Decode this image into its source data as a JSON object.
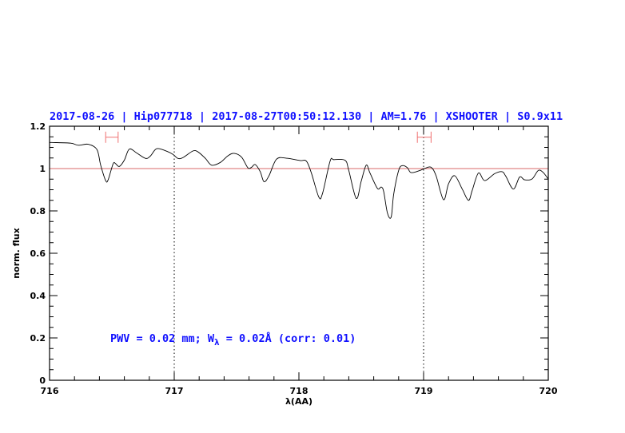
{
  "chart_data": {
    "type": "line",
    "title": "2017-08-26 | Hip077718 | 2017-08-27T00:50:12.130 | AM=1.76 | XSHOOTER | S0.9x11",
    "xlabel": "λ(AA)",
    "ylabel": "norm. flux",
    "xlim": [
      716,
      720
    ],
    "ylim": [
      0,
      1.2
    ],
    "x_ticks": [
      "716",
      "717",
      "718",
      "719",
      "720"
    ],
    "y_ticks": [
      "0",
      "0.2",
      "0.4",
      "0.6",
      "0.8",
      "1",
      "1.2"
    ],
    "grid": false,
    "reference_line_y": 1,
    "reference_line_color": "#d86a6a",
    "dotted_vertical_lines_x": [
      717,
      719
    ],
    "annotation": {
      "prefix": "PWV = 0.02 mm; W",
      "subscript": "λ",
      "suffix": " = 0.02Å (corr: 0.01)"
    },
    "error_bars": [
      {
        "x_from": 716.45,
        "x_to": 716.55,
        "y": 1.148
      },
      {
        "x_from": 718.95,
        "x_to": 719.06,
        "y": 1.148
      }
    ],
    "error_bar_color": "#f07070",
    "title_color": "#1010ff",
    "series": [
      {
        "color": "#000000",
        "x": [
          716.0,
          716.03,
          716.17,
          716.23,
          716.31,
          716.38,
          716.41,
          716.45,
          716.47,
          716.51,
          716.53,
          716.56,
          716.6,
          716.64,
          716.7,
          716.77,
          716.81,
          716.86,
          716.94,
          716.99,
          717.03,
          717.07,
          717.15,
          717.19,
          717.25,
          717.3,
          717.37,
          717.43,
          717.48,
          717.54,
          717.59,
          717.62,
          717.65,
          717.69,
          717.72,
          717.76,
          717.82,
          717.9,
          718.01,
          718.06,
          718.1,
          718.16,
          718.19,
          718.25,
          718.28,
          718.37,
          718.4,
          718.46,
          718.5,
          718.54,
          718.57,
          718.63,
          718.66,
          718.68,
          718.71,
          718.74,
          718.76,
          718.8,
          718.83,
          718.87,
          718.9,
          718.97,
          719.01,
          719.06,
          719.1,
          719.16,
          719.2,
          719.25,
          719.31,
          719.36,
          719.39,
          719.44,
          719.49,
          719.57,
          719.63,
          719.66,
          719.72,
          719.77,
          719.81,
          719.87,
          719.92,
          719.96,
          720.0
        ],
        "y": [
          1.123,
          1.123,
          1.12,
          1.11,
          1.115,
          1.09,
          1.016,
          0.943,
          0.947,
          1.023,
          1.023,
          1.01,
          1.04,
          1.092,
          1.073,
          1.048,
          1.06,
          1.094,
          1.082,
          1.067,
          1.048,
          1.052,
          1.083,
          1.079,
          1.048,
          1.016,
          1.029,
          1.06,
          1.072,
          1.054,
          1.004,
          1.006,
          1.019,
          0.985,
          0.938,
          0.966,
          1.044,
          1.049,
          1.038,
          1.035,
          0.979,
          0.865,
          0.884,
          1.035,
          1.042,
          1.039,
          0.991,
          0.859,
          0.941,
          1.016,
          0.979,
          0.906,
          0.913,
          0.891,
          0.79,
          0.771,
          0.878,
          0.991,
          1.014,
          1.004,
          0.981,
          0.991,
          1.001,
          1.006,
          0.966,
          0.853,
          0.928,
          0.966,
          0.903,
          0.85,
          0.897,
          0.979,
          0.943,
          0.976,
          0.985,
          0.963,
          0.903,
          0.96,
          0.947,
          0.951,
          0.991,
          0.981,
          0.95
        ]
      }
    ]
  }
}
